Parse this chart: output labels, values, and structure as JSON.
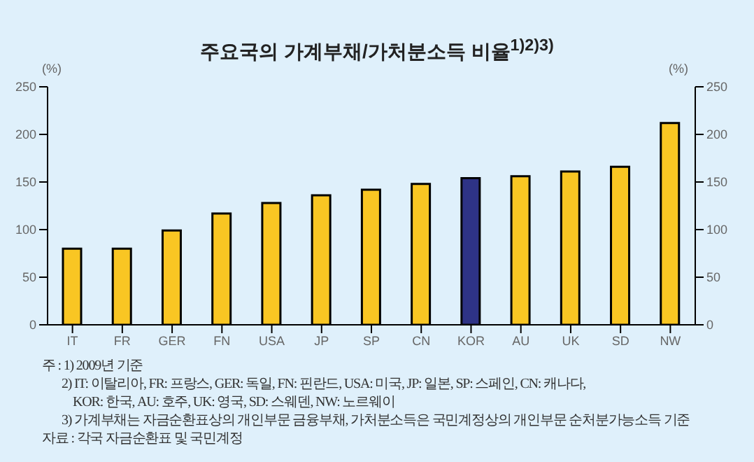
{
  "chart_data": {
    "type": "bar",
    "title": "주요국의 가계부채/가처분소득 비율$^{1)2)3)}$",
    "ylabel": "(%)",
    "y2label": "(%)",
    "categories": [
      "IT",
      "FR",
      "GER",
      "FN",
      "USA",
      "JP",
      "SP",
      "CN",
      "KOR",
      "AU",
      "UK",
      "SD",
      "NW"
    ],
    "values": [
      80,
      80,
      99,
      117,
      128,
      136,
      142,
      148,
      154,
      156,
      161,
      166,
      212
    ],
    "colors": [
      "#f9c623",
      "#f9c623",
      "#f9c623",
      "#f9c623",
      "#f9c623",
      "#f9c623",
      "#f9c623",
      "#f9c623",
      "#2e3386",
      "#f9c623",
      "#f9c623",
      "#f9c623",
      "#f9c623"
    ],
    "ylim": [
      0,
      250
    ],
    "yticks": [
      0,
      50,
      100,
      150,
      200,
      250
    ],
    "y2lim": [
      0,
      250
    ],
    "y2ticks": [
      0,
      50,
      100,
      150,
      200,
      250
    ],
    "annotations": [
      "주 : 1) 2009년 기준",
      "2) IT: 이탈리아, FR: 프랑스, GER: 독일, FN: 핀란드, USA: 미국, JP: 일본, SP: 스페인, CN: 캐나다,",
      "KOR: 한국, AU: 호주, UK: 영국, SD: 스웨덴, NW: 노르웨이",
      "3) 가계부채는 자금순환표상의 개인부문 금융부채, 가처분소득은 국민계정상의 개인부문 순처분가능소득 기준",
      "자료 : 각국 자금순환표 및 국민계정"
    ]
  }
}
